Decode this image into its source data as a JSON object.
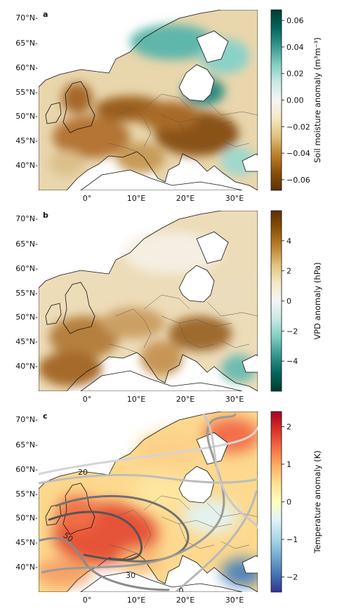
{
  "chart_data": [
    {
      "type": "heatmap",
      "panel": "a",
      "panel_label": "a",
      "lat_ticks": [
        "70°N",
        "65°N",
        "60°N",
        "55°N",
        "50°N",
        "45°N",
        "40°N"
      ],
      "lon_ticks": [
        "0°",
        "10°E",
        "20°E",
        "30°E"
      ],
      "colorbar": {
        "label": "Soil moisture anomaly (m³m⁻³)",
        "ticks": [
          "0.06",
          "0.04",
          "0.02",
          "0.00",
          "−0.02",
          "−0.04",
          "−0.06"
        ],
        "range": [
          -0.068,
          0.068
        ],
        "colormap": "BrBG",
        "colors": [
          "#5a3005",
          "#8c510a",
          "#bf812d",
          "#dfc27d",
          "#f6e8c3",
          "#f5f5f5",
          "#c7eae5",
          "#80cdc1",
          "#35978f",
          "#01665e",
          "#003c30"
        ]
      }
    },
    {
      "type": "heatmap",
      "panel": "b",
      "panel_label": "b",
      "lat_ticks": [
        "70°N",
        "65°N",
        "60°N",
        "55°N",
        "50°N",
        "45°N",
        "40°N"
      ],
      "lon_ticks": [
        "0°",
        "10°E",
        "20°E",
        "30°E"
      ],
      "colorbar": {
        "label": "VPD anomaly (hPa)",
        "ticks": [
          "4",
          "2",
          "0",
          "−2",
          "−4"
        ],
        "range": [
          -6,
          6
        ],
        "colormap": "BrBG_r",
        "colors": [
          "#003c30",
          "#01665e",
          "#35978f",
          "#80cdc1",
          "#c7eae5",
          "#f5f5f5",
          "#f6e8c3",
          "#dfc27d",
          "#bf812d",
          "#8c510a",
          "#5a3005"
        ]
      }
    },
    {
      "type": "heatmap",
      "panel": "c",
      "panel_label": "c",
      "lat_ticks": [
        "70°N",
        "65°N",
        "60°N",
        "55°N",
        "50°N",
        "45°N",
        "40°N"
      ],
      "lon_ticks": [
        "0°",
        "10°E",
        "20°E",
        "30°E"
      ],
      "contour_labels": [
        "20",
        "50",
        "30",
        "0"
      ],
      "colorbar": {
        "label": "Temperature anomaly (K)",
        "ticks": [
          "2",
          "1",
          "0",
          "−1",
          "−2"
        ],
        "range": [
          -2.4,
          2.4
        ],
        "colormap": "RdYlBu_r",
        "colors": [
          "#313695",
          "#4575b4",
          "#74add1",
          "#abd9e9",
          "#e0f3f8",
          "#ffffbf",
          "#fee090",
          "#fdae61",
          "#f46d43",
          "#d73027",
          "#a50026"
        ]
      }
    }
  ]
}
